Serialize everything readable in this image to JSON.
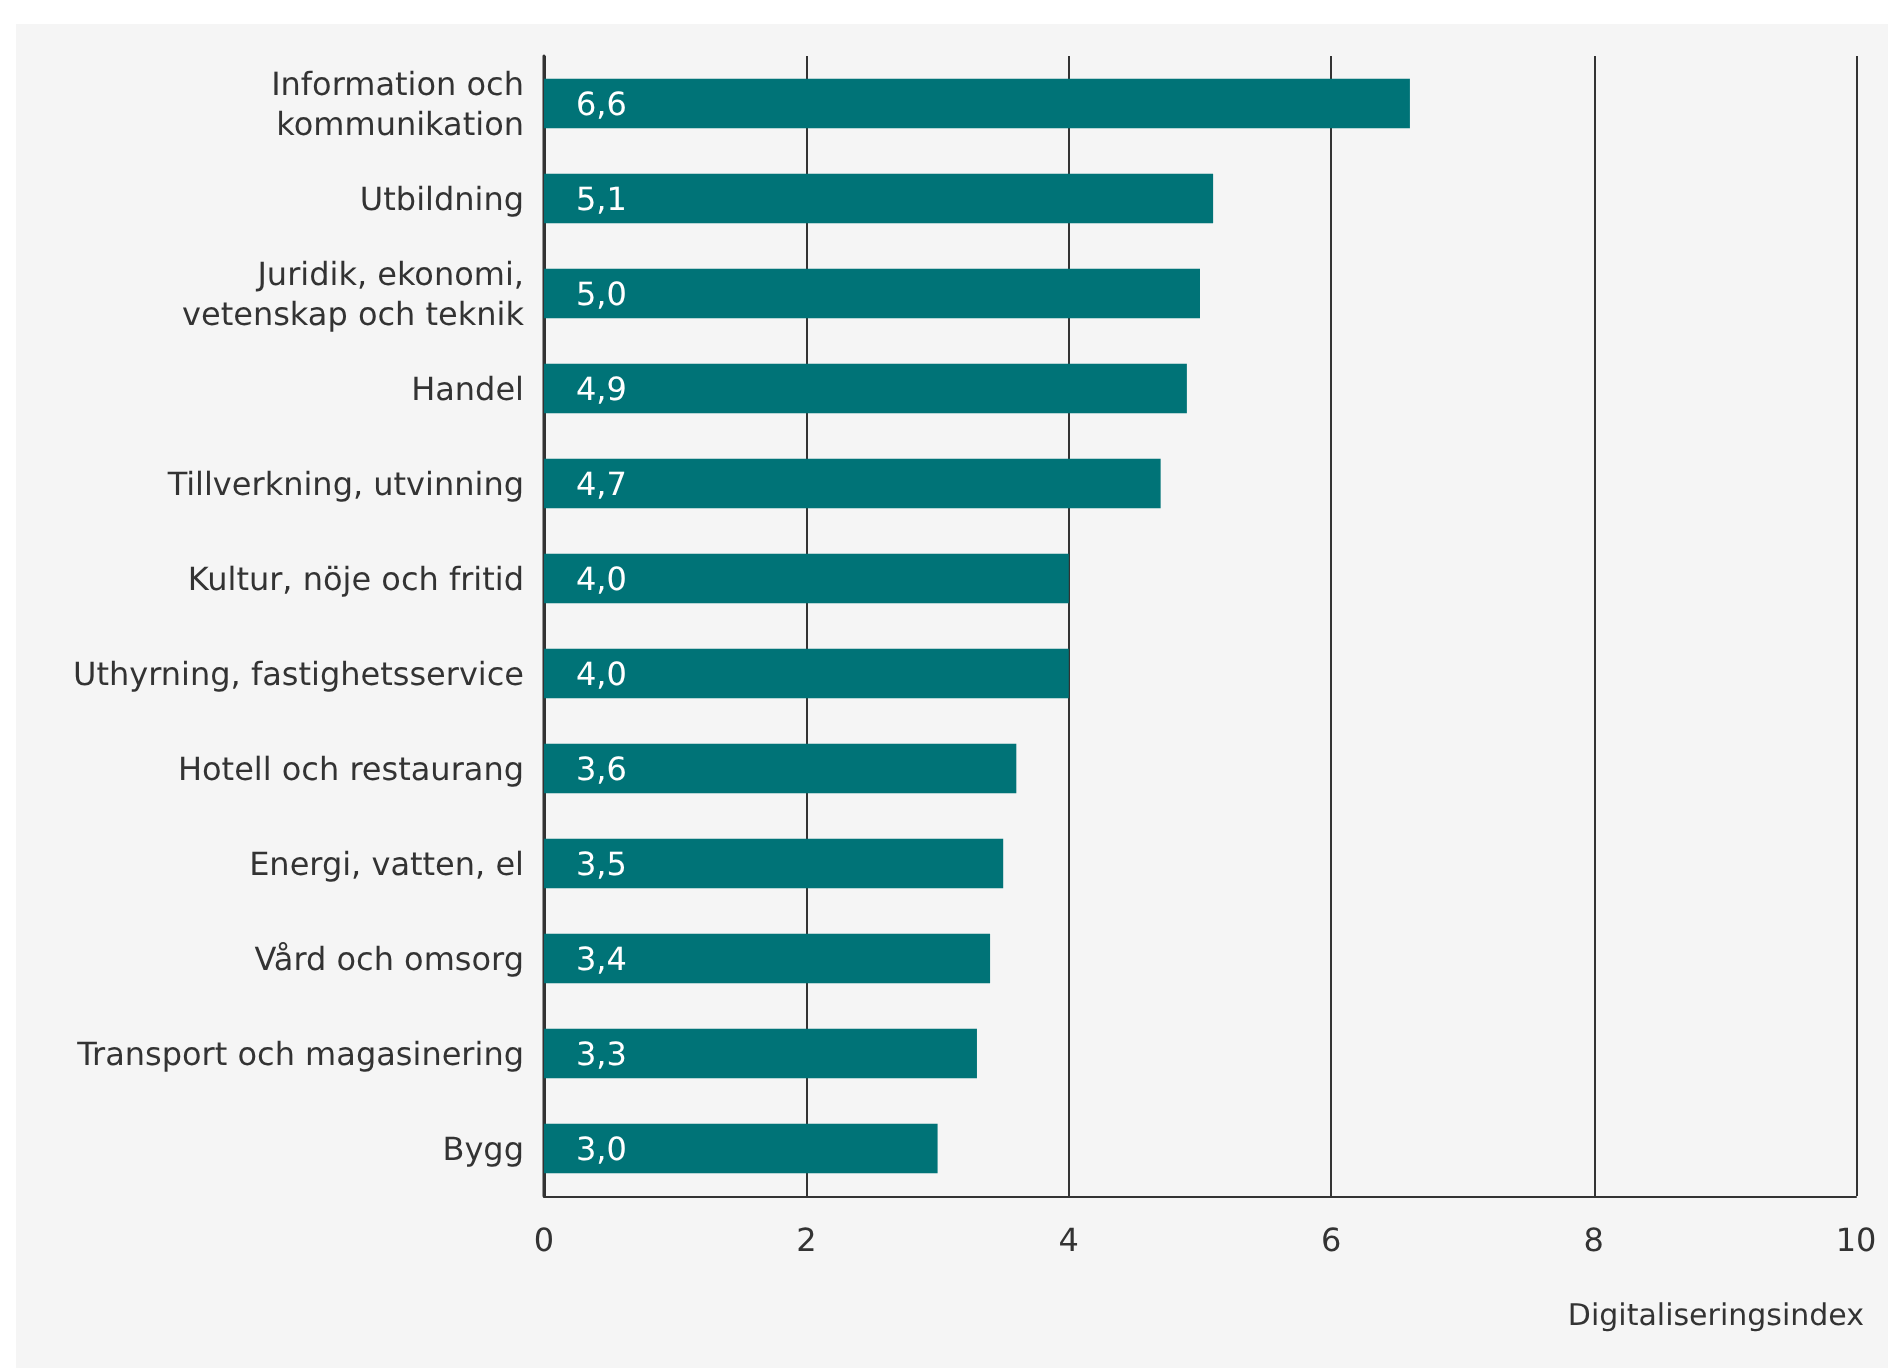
{
  "chart_data": {
    "type": "bar",
    "orientation": "horizontal",
    "categories": [
      "Information och\nkommunikation",
      "Utbildning",
      "Juridik, ekonomi,\nvetenskap och teknik",
      "Handel",
      "Tillverkning, utvinning",
      "Kultur, nöje och fritid",
      "Uthyrning, fastighetsservice",
      "Hotell och restaurang",
      "Energi, vatten, el",
      "Vård och omsorg",
      "Transport och magasinering",
      "Bygg"
    ],
    "values": [
      6.6,
      5.1,
      5.0,
      4.9,
      4.7,
      4.0,
      4.0,
      3.6,
      3.5,
      3.4,
      3.3,
      3.0
    ],
    "value_labels": [
      "6,6",
      "5,1",
      "5,0",
      "4,9",
      "4,7",
      "4,0",
      "4,0",
      "3,6",
      "3,5",
      "3,4",
      "3,3",
      "3,0"
    ],
    "color": "#007377",
    "xlabel": "Digitaliseringsindex",
    "xlim": [
      0,
      10
    ],
    "xticks": [
      0,
      2,
      4,
      6,
      8,
      10
    ],
    "grid": "x"
  }
}
